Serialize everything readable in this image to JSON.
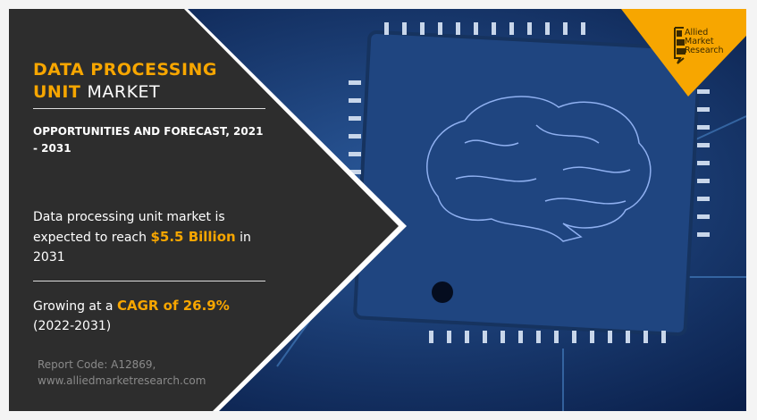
{
  "title": {
    "highlight": "DATA PROCESSING UNIT",
    "rest": "MARKET"
  },
  "subtitle": "OPPORTUNITIES AND FORECAST, 2021 - 2031",
  "reach": {
    "pre": "Data processing unit market is expected to reach",
    "value": "$5.5 Billion",
    "post": "in 2031"
  },
  "cagr": {
    "pre": "Growing at a",
    "value": "CAGR of 26.9%",
    "post": "(2022-2031)"
  },
  "report_code": "Report Code: A12869,",
  "website": "www.alliedmarketresearch.com",
  "logo": {
    "line1": "Allied",
    "line2": "Market",
    "line3": "Research"
  },
  "colors": {
    "accent": "#f7a600",
    "panel": "#2d2d2d",
    "image_blue": "#1a3f7a"
  }
}
